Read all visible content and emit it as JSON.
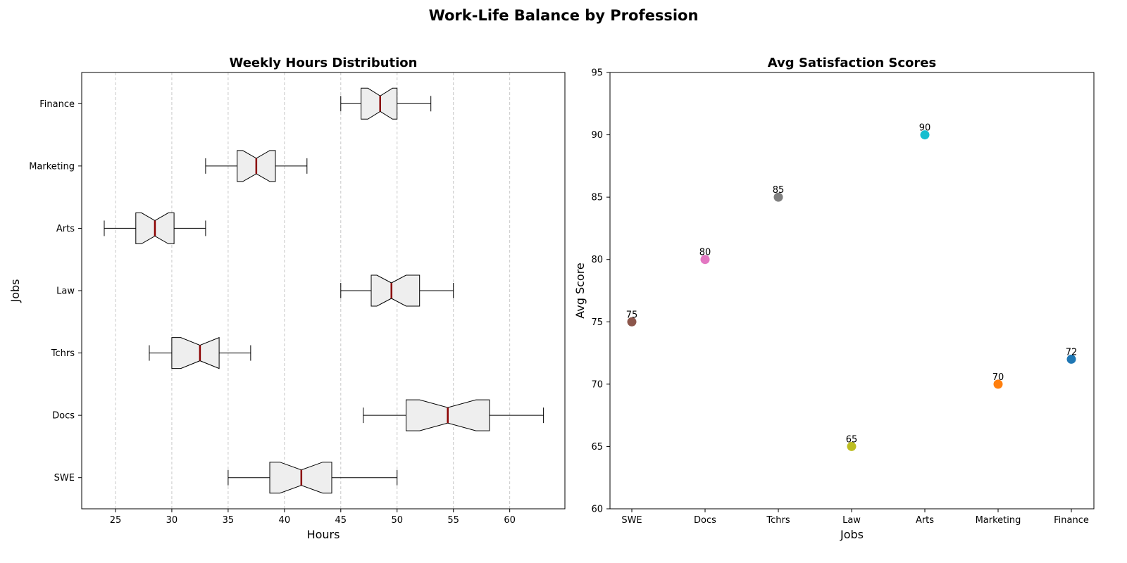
{
  "figure_title": "Work-Life Balance by Profession",
  "chart_data": [
    {
      "type": "box",
      "title": "Weekly Hours Distribution",
      "xlabel": "Hours",
      "ylabel": "Jobs",
      "orientation": "horizontal",
      "notched": true,
      "grid": "x-dashed",
      "xlim": [
        22,
        64.9
      ],
      "xticks": [
        25,
        30,
        35,
        40,
        45,
        50,
        55,
        60
      ],
      "categories": [
        "SWE",
        "Docs",
        "Tchrs",
        "Law",
        "Arts",
        "Marketing",
        "Finance"
      ],
      "boxes": [
        {
          "label": "SWE",
          "whisker_low": 35,
          "q1": 38.7,
          "median": 41.5,
          "q3": 44.2,
          "whisker_high": 50,
          "notch_low": 39.6,
          "notch_high": 43.4
        },
        {
          "label": "Docs",
          "whisker_low": 47,
          "q1": 50.8,
          "median": 54.5,
          "q3": 58.2,
          "whisker_high": 63,
          "notch_low": 52.0,
          "notch_high": 57.0
        },
        {
          "label": "Tchrs",
          "whisker_low": 28,
          "q1": 30.0,
          "median": 32.5,
          "q3": 34.2,
          "whisker_high": 37,
          "notch_low": 30.8,
          "notch_high": 34.2
        },
        {
          "label": "Law",
          "whisker_low": 45,
          "q1": 47.7,
          "median": 49.5,
          "q3": 52.0,
          "whisker_high": 55,
          "notch_low": 48.2,
          "notch_high": 50.8
        },
        {
          "label": "Arts",
          "whisker_low": 24,
          "q1": 26.8,
          "median": 28.5,
          "q3": 30.2,
          "whisker_high": 33,
          "notch_low": 27.3,
          "notch_high": 29.7
        },
        {
          "label": "Marketing",
          "whisker_low": 33,
          "q1": 35.8,
          "median": 37.5,
          "q3": 39.2,
          "whisker_high": 42,
          "notch_low": 36.3,
          "notch_high": 38.7
        },
        {
          "label": "Finance",
          "whisker_low": 45,
          "q1": 46.8,
          "median": 48.5,
          "q3": 50.0,
          "whisker_high": 53,
          "notch_low": 47.4,
          "notch_high": 49.6
        }
      ],
      "colors": {
        "box_fill": "#eeeeee",
        "median": "#8b0000"
      }
    },
    {
      "type": "scatter",
      "title": "Avg Satisfaction Scores",
      "xlabel": "Jobs",
      "ylabel": "Avg Score",
      "ylim": [
        60,
        95
      ],
      "yticks": [
        60,
        65,
        70,
        75,
        80,
        85,
        90,
        95
      ],
      "categories": [
        "SWE",
        "Docs",
        "Tchrs",
        "Law",
        "Arts",
        "Marketing",
        "Finance"
      ],
      "values": [
        75,
        80,
        85,
        65,
        90,
        70,
        72
      ],
      "point_labels": [
        "75",
        "80",
        "85",
        "65",
        "90",
        "70",
        "72"
      ],
      "colors": [
        "#8c564b",
        "#e377c2",
        "#7f7f7f",
        "#bcbd22",
        "#17becf",
        "#ff7f0e",
        "#1f77b4"
      ]
    }
  ]
}
